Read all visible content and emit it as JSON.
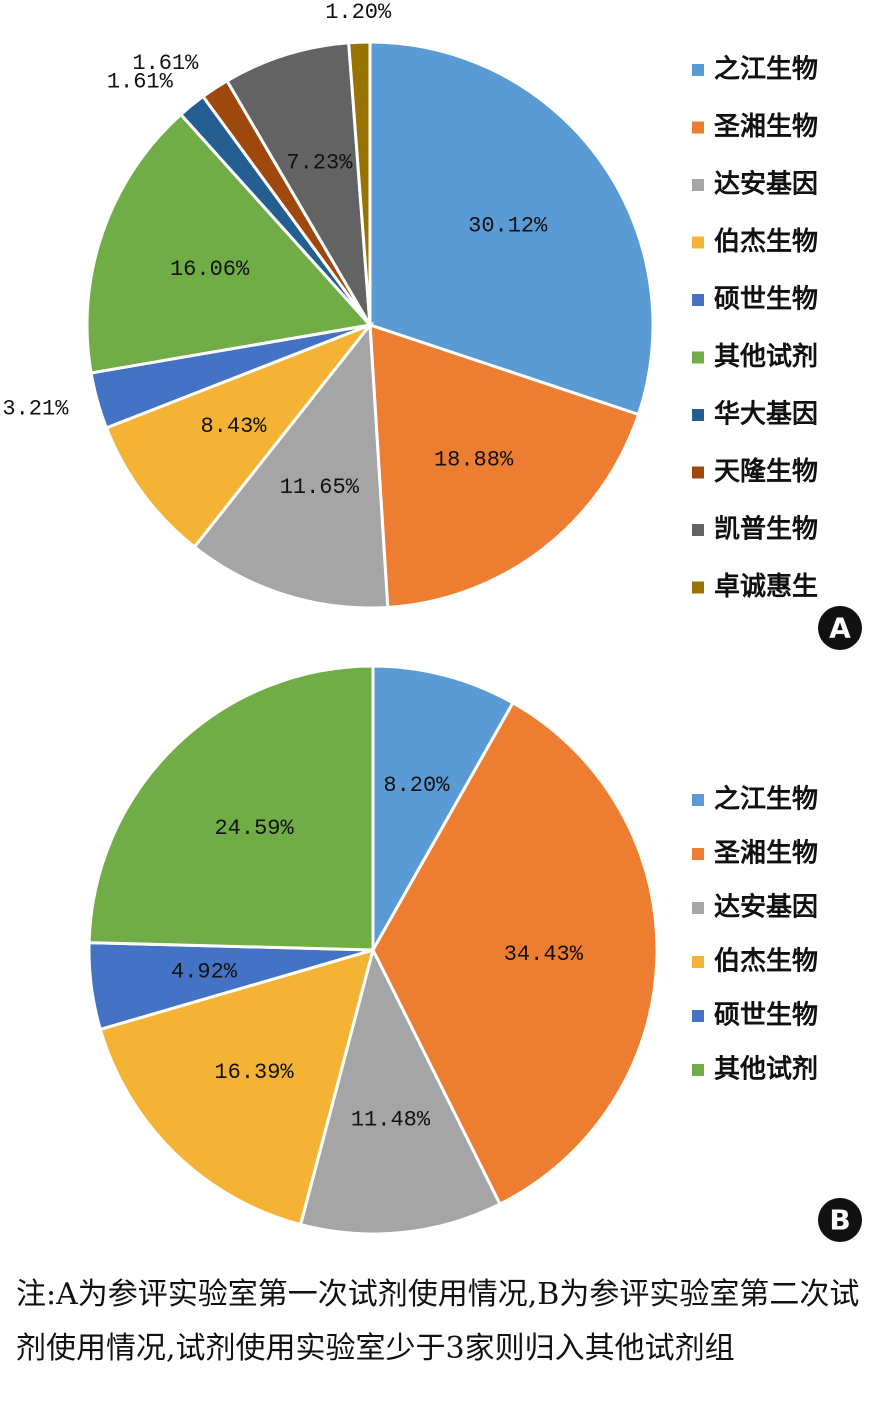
{
  "chart_data": [
    {
      "type": "pie",
      "panel": "A",
      "categories": [
        "之江生物",
        "圣湘生物",
        "达安基因",
        "伯杰生物",
        "硕世生物",
        "其他试剂",
        "华大基因",
        "天隆生物",
        "凯普生物",
        "卓诚惠生"
      ],
      "values": [
        30.12,
        18.88,
        11.65,
        8.43,
        3.21,
        16.06,
        1.61,
        1.61,
        7.23,
        1.2
      ],
      "value_labels": [
        "30.12%",
        "18.88%",
        "11.65%",
        "8.43%",
        "3.21%",
        "16.06%",
        "1.61%",
        "1.61%",
        "7.23%",
        "1.20%"
      ],
      "colors": [
        "#5b9bd5",
        "#ed7d31",
        "#a5a5a5",
        "#f5b335",
        "#4472c4",
        "#70ad47",
        "#255e91",
        "#9e480e",
        "#636363",
        "#997300"
      ]
    },
    {
      "type": "pie",
      "panel": "B",
      "categories": [
        "之江生物",
        "圣湘生物",
        "达安基因",
        "伯杰生物",
        "硕世生物",
        "其他试剂"
      ],
      "values": [
        8.2,
        34.43,
        11.48,
        16.39,
        4.92,
        24.59
      ],
      "value_labels": [
        "8.20%",
        "34.43%",
        "11.48%",
        "16.39%",
        "4.92%",
        "24.59%"
      ],
      "colors": [
        "#5b9bd5",
        "#ed7d31",
        "#a5a5a5",
        "#f5b335",
        "#4472c4",
        "#70ad47"
      ]
    }
  ],
  "note": "注:A为参评实验室第一次试剂使用情况,B为参评实验室第二次试剂使用情况,试剂使用实验室少于3家则归入其他试剂组"
}
